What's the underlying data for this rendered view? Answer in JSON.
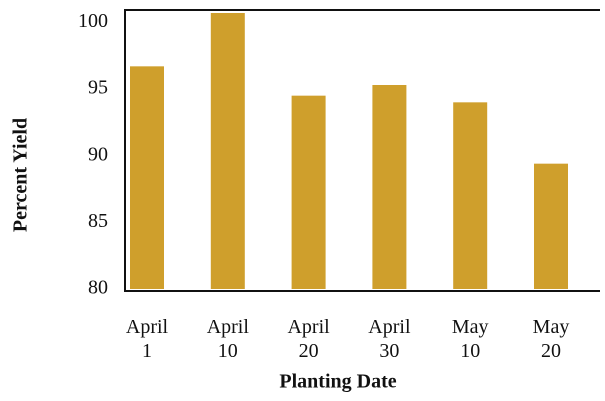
{
  "chart_data": {
    "type": "bar",
    "x_label": "Planting Date",
    "y_label": "Percent Yield",
    "categories": [
      "April\n1",
      "April\n10",
      "April\n20",
      "April\n30",
      "May\n10",
      "May\n20"
    ],
    "values": [
      96.7,
      100.7,
      94.5,
      95.3,
      94.0,
      89.4
    ],
    "color": "#cf9f2c",
    "ylim": [
      80,
      101
    ],
    "yticks": [
      80,
      85,
      90,
      95,
      100
    ],
    "grid": false
  }
}
